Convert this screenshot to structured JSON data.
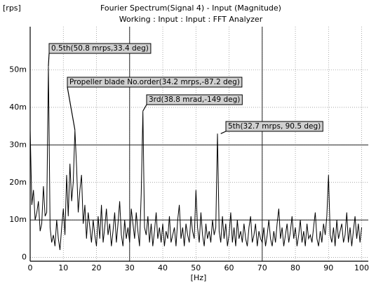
{
  "chart_data": {
    "type": "line",
    "title": "Fourier Spectrum(Signal 4) - Input (Magnitude)",
    "subtitle": "Working : Input : Input : FFT Analyzer",
    "y_label": "[rps]",
    "x_label": "[Hz]",
    "color": "#000000",
    "grid": true,
    "xlim": [
      0,
      102
    ],
    "ylim": [
      -0.001,
      0.0615
    ],
    "xticks": [
      0,
      10,
      20,
      30,
      40,
      50,
      60,
      70,
      80,
      90,
      100
    ],
    "yticks": [
      0,
      {
        "value": 0.01,
        "label": "10m"
      },
      {
        "value": 0.02,
        "label": "20m"
      },
      {
        "value": 0.03,
        "label": "30m"
      },
      {
        "value": 0.04,
        "label": "40m"
      },
      {
        "value": 0.05,
        "label": "50m"
      }
    ],
    "x_cursors": [
      30,
      70
    ],
    "y_cursors": [
      0.01,
      0.03
    ],
    "x": [
      0,
      0.5,
      1,
      1.5,
      2,
      2.5,
      3,
      3.5,
      4,
      4.5,
      5,
      5.5,
      6,
      6.5,
      7,
      7.5,
      8,
      8.5,
      9,
      9.5,
      10,
      10.5,
      11,
      11.5,
      12,
      12.5,
      13,
      13.5,
      14,
      14.5,
      15,
      15.5,
      16,
      16.5,
      17,
      17.5,
      18,
      18.5,
      19,
      19.5,
      20,
      20.5,
      21,
      21.5,
      22,
      22.5,
      23,
      23.5,
      24,
      24.5,
      25,
      25.5,
      26,
      26.5,
      27,
      27.5,
      28,
      28.5,
      29,
      29.5,
      30,
      30.5,
      31,
      31.5,
      32,
      32.5,
      33,
      33.5,
      34,
      34.5,
      35,
      35.5,
      36,
      36.5,
      37,
      37.5,
      38,
      38.5,
      39,
      39.5,
      40,
      40.5,
      41,
      41.5,
      42,
      42.5,
      43,
      43.5,
      44,
      44.5,
      45,
      45.5,
      46,
      46.5,
      47,
      47.5,
      48,
      48.5,
      49,
      49.5,
      50,
      50.5,
      51,
      51.5,
      52,
      52.5,
      53,
      53.5,
      54,
      54.5,
      55,
      55.5,
      56,
      56.5,
      57,
      57.5,
      58,
      58.5,
      59,
      59.5,
      60,
      60.5,
      61,
      61.5,
      62,
      62.5,
      63,
      63.5,
      64,
      64.5,
      65,
      65.5,
      66,
      66.5,
      67,
      67.5,
      68,
      68.5,
      69,
      69.5,
      70,
      70.5,
      71,
      71.5,
      72,
      72.5,
      73,
      73.5,
      74,
      74.5,
      75,
      75.5,
      76,
      76.5,
      77,
      77.5,
      78,
      78.5,
      79,
      79.5,
      80,
      80.5,
      81,
      81.5,
      82,
      82.5,
      83,
      83.5,
      84,
      84.5,
      85,
      85.5,
      86,
      86.5,
      87,
      87.5,
      88,
      88.5,
      89,
      89.5,
      90,
      90.5,
      91,
      91.5,
      92,
      92.5,
      93,
      93.5,
      94,
      94.5,
      95,
      95.5,
      96,
      96.5,
      97,
      97.5,
      98,
      98.5,
      99,
      99.5,
      100
    ],
    "values": [
      0.034,
      0.014,
      0.018,
      0.01,
      0.012,
      0.015,
      0.007,
      0.009,
      0.019,
      0.011,
      0.012,
      0.051,
      0.008,
      0.004,
      0.006,
      0.003,
      0.01,
      0.005,
      0.002,
      0.008,
      0.013,
      0.006,
      0.022,
      0.011,
      0.025,
      0.015,
      0.02,
      0.034,
      0.024,
      0.012,
      0.018,
      0.022,
      0.009,
      0.014,
      0.005,
      0.012,
      0.008,
      0.004,
      0.01,
      0.006,
      0.003,
      0.011,
      0.005,
      0.014,
      0.004,
      0.008,
      0.013,
      0.006,
      0.009,
      0.003,
      0.007,
      0.012,
      0.004,
      0.009,
      0.015,
      0.006,
      0.003,
      0.01,
      0.005,
      0.008,
      0.004,
      0.013,
      0.009,
      0.005,
      0.012,
      0.007,
      0.003,
      0.017,
      0.039,
      0.008,
      0.006,
      0.011,
      0.004,
      0.009,
      0.003,
      0.007,
      0.012,
      0.005,
      0.008,
      0.004,
      0.009,
      0.003,
      0.007,
      0.005,
      0.011,
      0.004,
      0.006,
      0.008,
      0.003,
      0.01,
      0.014,
      0.005,
      0.008,
      0.003,
      0.009,
      0.006,
      0.004,
      0.011,
      0.007,
      0.005,
      0.018,
      0.008,
      0.004,
      0.012,
      0.006,
      0.003,
      0.009,
      0.005,
      0.007,
      0.004,
      0.01,
      0.006,
      0.008,
      0.033,
      0.007,
      0.004,
      0.011,
      0.005,
      0.009,
      0.003,
      0.006,
      0.012,
      0.004,
      0.008,
      0.003,
      0.01,
      0.005,
      0.007,
      0.004,
      0.009,
      0.005,
      0.003,
      0.008,
      0.011,
      0.004,
      0.006,
      0.009,
      0.003,
      0.007,
      0.005,
      0.004,
      0.008,
      0.003,
      0.006,
      0.01,
      0.005,
      0.003,
      0.007,
      0.004,
      0.009,
      0.013,
      0.005,
      0.008,
      0.003,
      0.006,
      0.009,
      0.004,
      0.007,
      0.011,
      0.005,
      0.008,
      0.003,
      0.006,
      0.01,
      0.004,
      0.007,
      0.003,
      0.009,
      0.005,
      0.006,
      0.004,
      0.008,
      0.012,
      0.005,
      0.003,
      0.007,
      0.004,
      0.009,
      0.006,
      0.011,
      0.022,
      0.006,
      0.004,
      0.008,
      0.003,
      0.01,
      0.005,
      0.007,
      0.009,
      0.004,
      0.006,
      0.012,
      0.004,
      0.008,
      0.003,
      0.007,
      0.011,
      0.005,
      0.009,
      0.004,
      0.008
    ],
    "annotations": [
      {
        "text": "0.5th(50.8 mrps,33.4 deg)",
        "x": 5.5,
        "y": 0.051
      },
      {
        "text": "Propeller blade No.order(34.2 mrps,-87.2 deg)",
        "x": 13.5,
        "y": 0.034
      },
      {
        "text": "3rd(38.8 mrad,-149 deg)",
        "x": 34,
        "y": 0.039
      },
      {
        "text": "5th(32.7 mrps, 90.5 deg)",
        "x": 57.5,
        "y": 0.033
      }
    ]
  }
}
